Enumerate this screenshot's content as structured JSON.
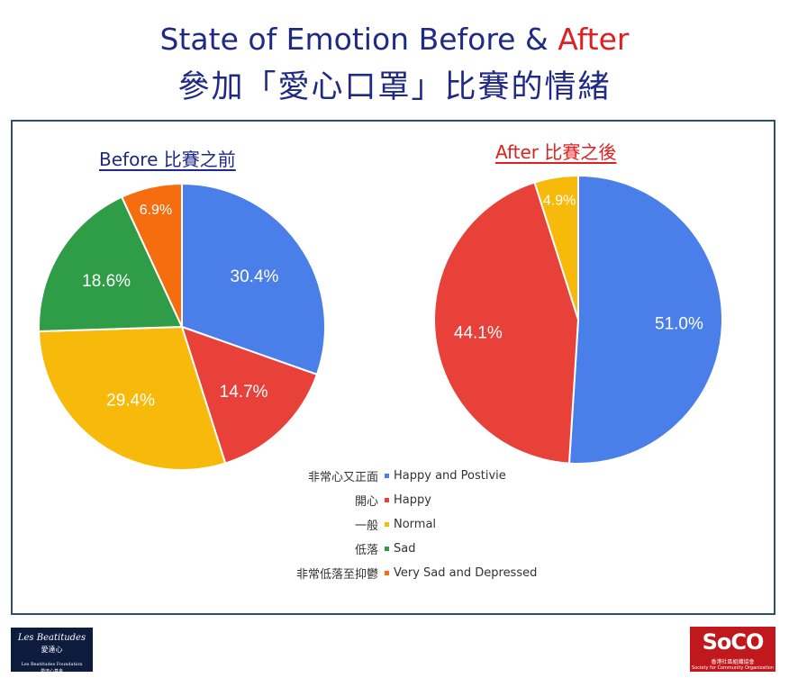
{
  "title": {
    "line1_main": "State of Emotion Before & ",
    "line1_accent": "After",
    "line2": "參加「愛心口罩」比賽的情緒"
  },
  "colors": {
    "title": "#1f2a86",
    "accent": "#e02020",
    "blue": "#4a7ee8",
    "red": "#e8413a",
    "yellow": "#f7b90a",
    "green": "#2f9d48",
    "orange": "#f56d0f"
  },
  "chart_data": [
    {
      "type": "pie",
      "title": "Before 比賽之前",
      "slices": [
        {
          "label": "Happy and Postivie",
          "value": 30.4,
          "display": "30.4%",
          "color": "#4a7ee8"
        },
        {
          "label": "Happy",
          "value": 14.7,
          "display": "14.7%",
          "color": "#e8413a"
        },
        {
          "label": "Normal",
          "value": 29.4,
          "display": "29.4%",
          "color": "#f7b90a"
        },
        {
          "label": "Sad",
          "value": 18.6,
          "display": "18.6%",
          "color": "#2f9d48"
        },
        {
          "label": "Very Sad and Depressed",
          "value": 6.9,
          "display": "6.9%",
          "color": "#f56d0f"
        }
      ]
    },
    {
      "type": "pie",
      "title": "After 比賽之後",
      "slices": [
        {
          "label": "Happy and Postivie",
          "value": 51.0,
          "display": "51.0%",
          "color": "#4a7ee8"
        },
        {
          "label": "Happy",
          "value": 44.1,
          "display": "44.1%",
          "color": "#e8413a"
        },
        {
          "label": "Normal",
          "value": 4.9,
          "display": "4.9%",
          "color": "#f7b90a"
        }
      ]
    }
  ],
  "legend": [
    {
      "zh": "非常心又正面",
      "en": "Happy and Postivie",
      "color": "#4a7ee8"
    },
    {
      "zh": "開心",
      "en": "Happy",
      "color": "#e8413a"
    },
    {
      "zh": "一般",
      "en": "Normal",
      "color": "#f7b90a"
    },
    {
      "zh": "低落",
      "en": "Sad",
      "color": "#2f9d48"
    },
    {
      "zh": "非常低落至抑鬱",
      "en": "Very Sad and Depressed",
      "color": "#f56d0f"
    }
  ],
  "logos": {
    "left_line1": "Les Beatitudes",
    "left_line2": "愛達心",
    "left_line3": "Les Beatitudes Foundation",
    "left_line4": "愛達心基金",
    "right_brand": "SoCO",
    "right_zh": "香港社區組織協會",
    "right_en": "Society for Community Organization"
  }
}
